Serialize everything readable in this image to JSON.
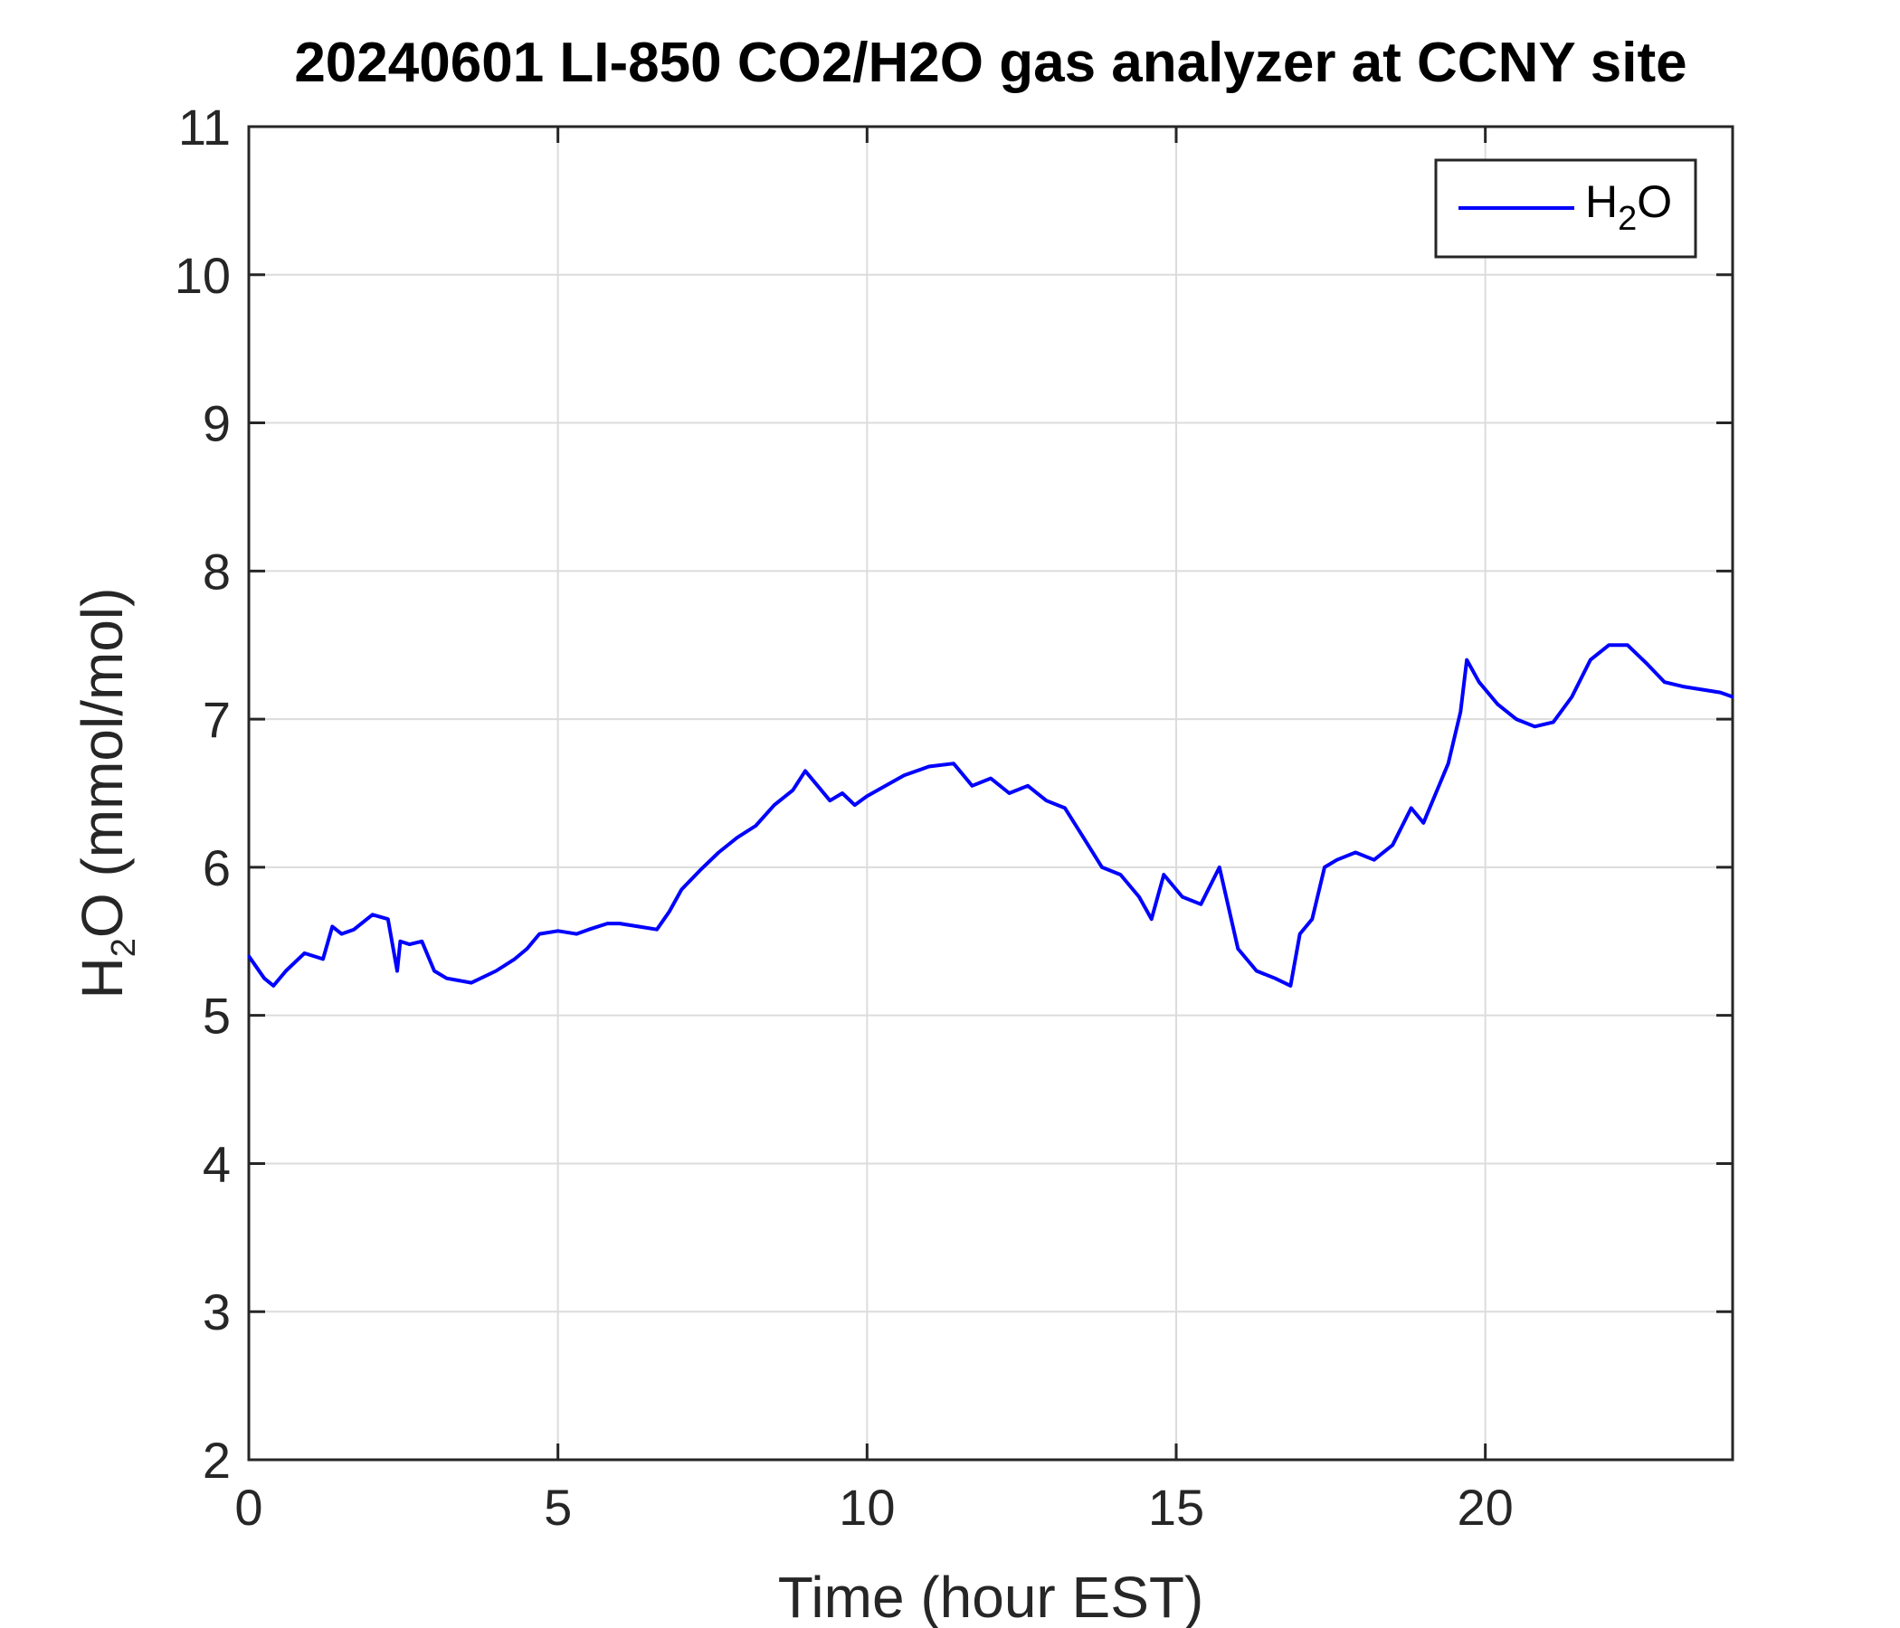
{
  "chart_data": {
    "type": "line",
    "title": "20240601 LI-850 CO2/H2O gas analyzer at CCNY site",
    "xlabel": "Time (hour EST)",
    "ylabel": {
      "main": "H",
      "sub": "2",
      "rest": "O (mmol/mol)"
    },
    "xlim": [
      0,
      24
    ],
    "ylim": [
      2,
      11
    ],
    "xticks": [
      0,
      5,
      10,
      15,
      20
    ],
    "yticks": [
      2,
      3,
      4,
      5,
      6,
      7,
      8,
      9,
      10,
      11
    ],
    "grid": true,
    "legend_position": "top-right",
    "series": [
      {
        "name": "H2O",
        "legend": {
          "main": "H",
          "sub": "2",
          "rest": "O"
        },
        "color": "#0000ff",
        "x": [
          0,
          0.25,
          0.4,
          0.6,
          0.9,
          1.2,
          1.35,
          1.5,
          1.7,
          2.0,
          2.25,
          2.4,
          2.45,
          2.6,
          2.8,
          3.0,
          3.2,
          3.6,
          4.0,
          4.3,
          4.5,
          4.7,
          5.0,
          5.3,
          5.5,
          5.8,
          6.0,
          6.3,
          6.6,
          6.8,
          7.0,
          7.3,
          7.6,
          7.9,
          8.2,
          8.5,
          8.8,
          9.0,
          9.2,
          9.4,
          9.6,
          9.8,
          10.0,
          10.3,
          10.6,
          11.0,
          11.4,
          11.7,
          12.0,
          12.3,
          12.6,
          12.9,
          13.2,
          13.5,
          13.8,
          14.1,
          14.4,
          14.6,
          14.8,
          15.1,
          15.4,
          15.7,
          16.0,
          16.3,
          16.6,
          16.85,
          17.0,
          17.2,
          17.4,
          17.6,
          17.9,
          18.2,
          18.5,
          18.8,
          19.0,
          19.2,
          19.4,
          19.6,
          19.7,
          19.9,
          20.2,
          20.5,
          20.8,
          21.1,
          21.4,
          21.7,
          22.0,
          22.3,
          22.6,
          22.9,
          23.2,
          23.5,
          23.8,
          24.0
        ],
        "values": [
          5.4,
          5.25,
          5.2,
          5.3,
          5.42,
          5.38,
          5.6,
          5.55,
          5.58,
          5.68,
          5.65,
          5.3,
          5.5,
          5.48,
          5.5,
          5.3,
          5.25,
          5.22,
          5.3,
          5.38,
          5.45,
          5.55,
          5.57,
          5.55,
          5.58,
          5.62,
          5.62,
          5.6,
          5.58,
          5.7,
          5.85,
          5.98,
          6.1,
          6.2,
          6.28,
          6.42,
          6.52,
          6.65,
          6.55,
          6.45,
          6.5,
          6.42,
          6.48,
          6.55,
          6.62,
          6.68,
          6.7,
          6.55,
          6.6,
          6.5,
          6.55,
          6.45,
          6.4,
          6.2,
          6.0,
          5.95,
          5.8,
          5.65,
          5.95,
          5.8,
          5.75,
          6.0,
          5.45,
          5.3,
          5.25,
          5.2,
          5.55,
          5.65,
          6.0,
          6.05,
          6.1,
          6.05,
          6.15,
          6.4,
          6.3,
          6.5,
          6.7,
          7.05,
          7.4,
          7.25,
          7.1,
          7.0,
          6.95,
          6.98,
          7.15,
          7.4,
          7.5,
          7.5,
          7.38,
          7.25,
          7.22,
          7.2,
          7.18,
          7.15
        ]
      }
    ]
  }
}
